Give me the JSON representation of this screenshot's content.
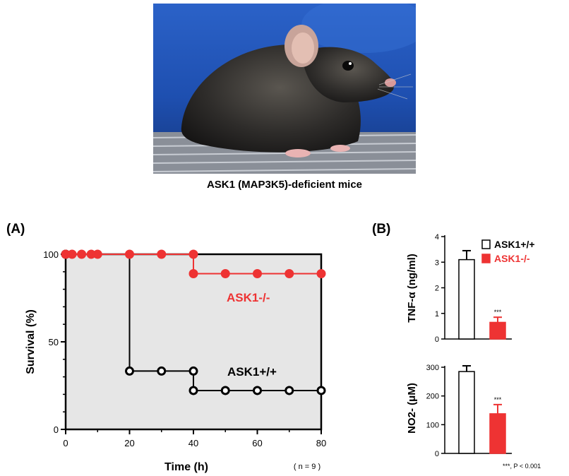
{
  "photo": {
    "caption": "ASK1 (MAP3K5)-deficient mice"
  },
  "panel_a": {
    "label": "(A)",
    "n_note": "( n = 9 )"
  },
  "panel_b": {
    "label": "(B)",
    "footnote": "***, P < 0.001"
  },
  "colors": {
    "ko": "#ee3333",
    "wt": "#000000",
    "plot_bg": "#e6e6e6"
  },
  "chart_data": [
    {
      "type": "line",
      "panel": "A",
      "xlabel": "Time (h)",
      "ylabel": "Survival (%)",
      "xlim": [
        0,
        80
      ],
      "ylim": [
        0,
        100
      ],
      "x_ticks": [
        0,
        20,
        40,
        60,
        80
      ],
      "y_ticks": [
        0,
        50,
        100
      ],
      "step": true,
      "series": [
        {
          "name": "ASK1-/-",
          "color": "#ee3333",
          "marker": "filled-circle",
          "x": [
            0,
            2,
            5,
            8,
            10,
            20,
            30,
            40,
            40,
            50,
            60,
            70,
            80
          ],
          "y": [
            100,
            100,
            100,
            100,
            100,
            100,
            100,
            100,
            88.9,
            88.9,
            88.9,
            88.9,
            88.9
          ]
        },
        {
          "name": "ASK1+/+",
          "color": "#000000",
          "marker": "open-circle",
          "x": [
            0,
            20,
            30,
            40,
            40,
            50,
            60,
            70,
            80
          ],
          "y": [
            100,
            33.3,
            33.3,
            33.3,
            22.2,
            22.2,
            22.2,
            22.2,
            22.2
          ]
        }
      ],
      "annotations": [
        "ASK1-/-",
        "ASK1+/+"
      ]
    },
    {
      "type": "bar",
      "panel": "B-top",
      "ylabel": "TNF-α (ng/ml)",
      "ylim": [
        0,
        4
      ],
      "y_ticks": [
        0,
        1,
        2,
        3,
        4
      ],
      "categories": [
        "ASK1+/+",
        "ASK1-/-"
      ],
      "values": [
        3.1,
        0.65
      ],
      "errors": [
        0.35,
        0.2
      ],
      "significance": [
        "",
        "***"
      ],
      "legend": [
        "ASK1+/+",
        "ASK1-/-"
      ]
    },
    {
      "type": "bar",
      "panel": "B-bottom",
      "ylabel": "NO2- (μM)",
      "ylim": [
        0,
        300
      ],
      "y_ticks": [
        0,
        100,
        200,
        300
      ],
      "categories": [
        "ASK1+/+",
        "ASK1-/-"
      ],
      "values": [
        285,
        138
      ],
      "errors": [
        20,
        32
      ],
      "significance": [
        "",
        "***"
      ]
    }
  ]
}
